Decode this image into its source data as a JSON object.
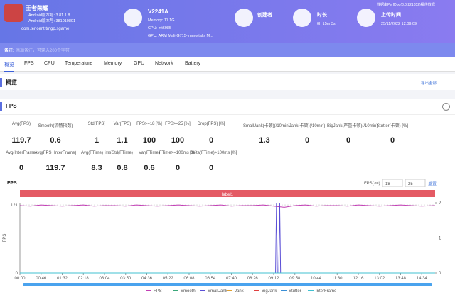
{
  "header": {
    "app_name": "王者荣耀",
    "app_version": "Android版本号: 3.81.1.8",
    "app_code": "Android版本号: 381010801",
    "package": "com.tencent.tmgp.sgame",
    "device": "V2241A",
    "memory": "Memory: 11.1G",
    "cpu": "CPU: mt6985",
    "gpu": "GPU: ARM Mali-G715-Immortalis M...",
    "creator_label": "创建者",
    "duration_label": "时长",
    "duration": "0h 15m 3s",
    "upload_label": "上传时间",
    "upload_time": "25/11/2022 12:09:09",
    "source_note": "数据由PerfDog(8.0.221052)提供数据"
  },
  "note": {
    "label": "备注:",
    "placeholder": "添加备注，可输入200个字符"
  },
  "tabs": [
    "概览",
    "FPS",
    "CPU",
    "Temperature",
    "Memory",
    "GPU",
    "Network",
    "Battery"
  ],
  "overview": {
    "title": "概览",
    "export": "导出全部"
  },
  "fps_section": {
    "title": "FPS",
    "stats": [
      [
        {
          "label": "Avg(FPS)",
          "value": 119.7
        },
        {
          "label": "Smooth(流畅指数)",
          "value": 0.6
        },
        {
          "label": "Std(FPS)",
          "value": 1
        },
        {
          "label": "Var(FPS)",
          "value": 1.1
        },
        {
          "label": "FPS>=18 [%]",
          "value": 100
        },
        {
          "label": "FPS>=25 [%]",
          "value": 100
        },
        {
          "label": "Drop(FPS) [/h]",
          "value": 0
        },
        {
          "label": "SmallJank(卡顿)(/10min)",
          "value": 1.3
        },
        {
          "label": "Jank(卡顿)(/10min)",
          "value": 0
        },
        {
          "label": "BigJank(严重卡顿)(/10min)",
          "value": 0
        },
        {
          "label": "Stutter(卡顿) [%]",
          "value": 0
        }
      ],
      [
        {
          "label": "Avg(InterFrame)",
          "value": 0
        },
        {
          "label": "Avg(FPS+InterFrame)",
          "value": 119.7
        },
        {
          "label": "Avg(FTime) [ms]",
          "value": 8.3
        },
        {
          "label": "Std(FTime)",
          "value": 0.8
        },
        {
          "label": "Var(FTime)",
          "value": 0.6
        },
        {
          "label": "FTime>=100ms [%]",
          "value": 0
        },
        {
          "label": "Delta(FTime)>100ms [/h]",
          "value": 0
        }
      ]
    ]
  },
  "chart_data": {
    "type": "line",
    "title": "FPS",
    "threshold_label": "FPS(>=)",
    "thresholds": [
      18,
      25
    ],
    "reset": "重置",
    "band_label": "label1",
    "ylabel": "FPS",
    "xlim": [
      0,
      903
    ],
    "xticks": [
      {
        "value": 0,
        "label": "00:00"
      },
      {
        "value": 46,
        "label": "00:46"
      },
      {
        "value": 92,
        "label": "01:32"
      },
      {
        "value": 138,
        "label": "02:18"
      },
      {
        "value": 184,
        "label": "03:04"
      },
      {
        "value": 230,
        "label": "03:50"
      },
      {
        "value": 276,
        "label": "04:36"
      },
      {
        "value": 322,
        "label": "05:22"
      },
      {
        "value": 368,
        "label": "06:08"
      },
      {
        "value": 414,
        "label": "06:54"
      },
      {
        "value": 460,
        "label": "07:40"
      },
      {
        "value": 506,
        "label": "08:26"
      },
      {
        "value": 552,
        "label": "09:12"
      },
      {
        "value": 598,
        "label": "09:58"
      },
      {
        "value": 644,
        "label": "10:44"
      },
      {
        "value": 690,
        "label": "11:30"
      },
      {
        "value": 736,
        "label": "12:16"
      },
      {
        "value": 782,
        "label": "13:02"
      },
      {
        "value": 828,
        "label": "13:48"
      },
      {
        "value": 874,
        "label": "14:34"
      }
    ],
    "ylim": [
      0,
      125
    ],
    "yticks": [
      0,
      121
    ],
    "y2lim": [
      0,
      2
    ],
    "y2ticks": [
      0,
      1,
      2
    ],
    "series": [
      {
        "name": "FPS",
        "color": "#c23fb5",
        "x": [
          0,
          23,
          46,
          69,
          92,
          115,
          138,
          161,
          184,
          207,
          230,
          253,
          276,
          299,
          322,
          345,
          368,
          391,
          414,
          437,
          460,
          483,
          506,
          529,
          552,
          575,
          598,
          621,
          644,
          667,
          690,
          713,
          736,
          759,
          782,
          805,
          828,
          851,
          874,
          903
        ],
        "values": [
          120,
          119,
          121,
          120,
          119,
          120,
          121,
          119,
          120,
          120,
          119,
          121,
          120,
          119,
          120,
          121,
          120,
          119,
          120,
          121,
          119,
          120,
          120,
          121,
          119,
          117,
          120,
          121,
          119,
          120,
          120,
          119,
          121,
          120,
          119,
          120,
          121,
          120,
          119,
          120
        ]
      },
      {
        "name": "Smooth",
        "color": "#3aa77a",
        "axis": "y2",
        "x": [
          0,
          903
        ],
        "values": [
          0,
          0
        ]
      },
      {
        "name": "SmallJank",
        "color": "#5b4fd6",
        "axis": "y2",
        "x": [
          0,
          556,
          558,
          560,
          563,
          565,
          567,
          903
        ],
        "values": [
          0,
          0,
          2,
          0,
          0,
          2,
          0,
          0
        ]
      },
      {
        "name": "Jank",
        "color": "#e0a030",
        "axis": "y2",
        "x": [
          0,
          903
        ],
        "values": [
          0,
          0
        ]
      },
      {
        "name": "BigJank",
        "color": "#e04040",
        "axis": "y2",
        "x": [
          0,
          903
        ],
        "values": [
          0,
          0
        ]
      },
      {
        "name": "Stutter",
        "color": "#3a8fd6",
        "axis": "y2",
        "x": [
          0,
          903
        ],
        "values": [
          0,
          0
        ]
      },
      {
        "name": "InterFrame",
        "color": "#40c0d0",
        "axis": "y2",
        "x": [
          0,
          903
        ],
        "values": [
          0,
          0
        ]
      }
    ]
  }
}
